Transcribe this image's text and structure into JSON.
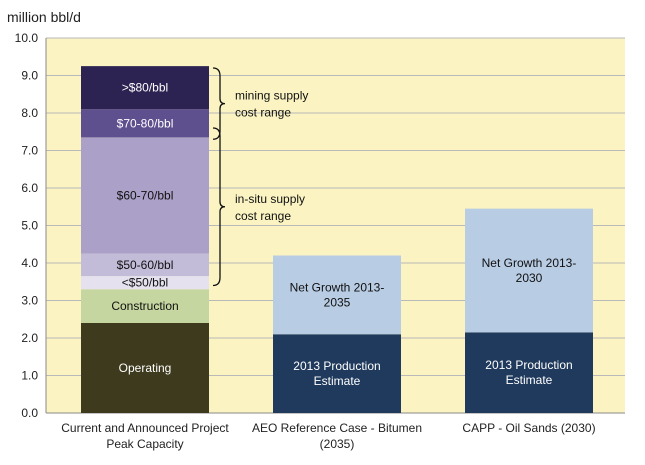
{
  "chart_data": {
    "type": "bar",
    "stacked": true,
    "ylabel": "million bbl/d",
    "ylim": [
      0,
      10
    ],
    "yticks": [
      "0.0",
      "1.0",
      "2.0",
      "3.0",
      "4.0",
      "5.0",
      "6.0",
      "7.0",
      "8.0",
      "9.0",
      "10.0"
    ],
    "ytick_values": [
      0,
      1,
      2,
      3,
      4,
      5,
      6,
      7,
      8,
      9,
      10
    ],
    "plot_background": "#fbf4c2",
    "grid": true,
    "categories": [
      [
        "Current and Announced Project",
        "Peak Capacity"
      ],
      [
        "AEO Reference Case - Bitumen",
        "(2035)"
      ],
      [
        "CAPP - Oil Sands (2030)"
      ]
    ],
    "bars": [
      {
        "segments": [
          {
            "name": "Operating",
            "lines": [
              "Operating"
            ],
            "value": 2.4,
            "color": "#3d3a1d",
            "text_color": "#ffffff"
          },
          {
            "name": "Construction",
            "lines": [
              "Construction"
            ],
            "value": 0.9,
            "color": "#c5d6a0",
            "text_color": "#111111"
          },
          {
            "name": "<$50/bbl",
            "lines": [
              "<$50/bbl"
            ],
            "value": 0.35,
            "color": "#e6e1ef",
            "text_color": "#111111"
          },
          {
            "name": "$50-60/bbl",
            "lines": [
              "$50-60/bbl"
            ],
            "value": 0.6,
            "color": "#c3bcd9",
            "text_color": "#111111"
          },
          {
            "name": "$60-70/bbl",
            "lines": [
              "$60-70/bbl"
            ],
            "value": 3.1,
            "color": "#aba0c8",
            "text_color": "#111111"
          },
          {
            "name": "$70-80/bbl",
            "lines": [
              "$70-80/bbl"
            ],
            "value": 0.75,
            "color": "#5e4f8f",
            "text_color": "#ffffff"
          },
          {
            "name": ">$80/bbl",
            "lines": [
              ">$80/bbl"
            ],
            "value": 1.15,
            "color": "#2d2352",
            "text_color": "#ffffff"
          }
        ]
      },
      {
        "segments": [
          {
            "name": "2013 Production Estimate",
            "lines": [
              "2013 Production",
              "Estimate"
            ],
            "value": 2.1,
            "color": "#1f3a5c",
            "text_color": "#ffffff"
          },
          {
            "name": "Net Growth 2013-2035",
            "lines": [
              "Net Growth 2013-",
              "2035"
            ],
            "value": 2.1,
            "color": "#b8cce4",
            "text_color": "#111111"
          }
        ]
      },
      {
        "segments": [
          {
            "name": "2013 Production Estimate",
            "lines": [
              "2013 Production",
              "Estimate"
            ],
            "value": 2.15,
            "color": "#1f3a5c",
            "text_color": "#ffffff"
          },
          {
            "name": "Net Growth 2013-2030",
            "lines": [
              "Net Growth 2013-",
              "2030"
            ],
            "value": 3.3,
            "color": "#b8cce4",
            "text_color": "#111111"
          }
        ]
      }
    ],
    "annotations": [
      {
        "name": "mining-supply-cost-range",
        "lines": [
          "mining supply",
          "cost range"
        ],
        "bar": 0,
        "from": 7.3,
        "to": 9.2
      },
      {
        "name": "in-situ-supply-cost-range",
        "lines": [
          "in-situ supply",
          "cost range"
        ],
        "bar": 0,
        "from": 3.4,
        "to": 7.6
      }
    ]
  }
}
